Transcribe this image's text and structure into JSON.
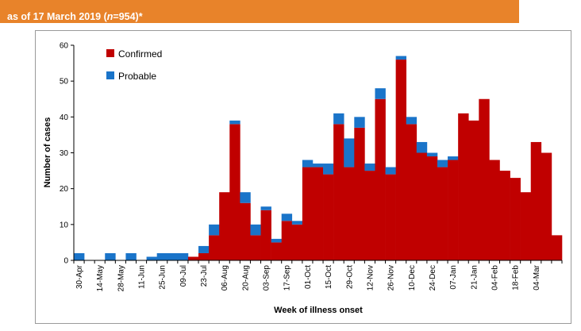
{
  "figure": {
    "caption_line": "as of 17 March 2019 (",
    "caption_n_label": "n",
    "caption_n_value": "=954)*"
  },
  "chart_data": {
    "type": "bar",
    "stacked": true,
    "xlabel": "Week of illness onset",
    "ylabel": "Number of cases",
    "ylim": [
      0,
      60
    ],
    "yticks": [
      0,
      10,
      20,
      30,
      40,
      50,
      60
    ],
    "legend_position": "top-left",
    "grid": false,
    "x_tick_labels": [
      "30-Apr",
      "14-May",
      "28-May",
      "11-Jun",
      "25-Jun",
      "09-Jul",
      "23-Jul",
      "06-Aug",
      "20-Aug",
      "03-Sep",
      "17-Sep",
      "01-Oct",
      "15-Oct",
      "29-Oct",
      "12-Nov",
      "26-Nov",
      "10-Dec",
      "24-Dec",
      "07-Jan",
      "21-Jan",
      "04-Feb",
      "18-Feb",
      "04-Mar"
    ],
    "series": [
      {
        "name": "Confirmed",
        "color": "#c00000",
        "values": [
          0,
          0,
          0,
          0,
          0,
          0,
          0,
          0,
          0,
          0,
          0,
          1,
          2,
          7,
          19,
          38,
          16,
          7,
          14,
          5,
          11,
          10,
          26,
          26,
          24,
          38,
          26,
          37,
          25,
          45,
          24,
          56,
          38,
          30,
          29,
          26,
          28,
          41,
          39,
          45,
          28,
          25,
          23,
          19,
          33,
          30,
          7
        ]
      },
      {
        "name": "Probable",
        "color": "#1a74c9",
        "values": [
          2,
          0,
          0,
          2,
          0,
          2,
          0,
          1,
          2,
          2,
          2,
          0,
          2,
          3,
          0,
          1,
          3,
          3,
          1,
          1,
          2,
          1,
          2,
          1,
          3,
          3,
          8,
          3,
          2,
          3,
          2,
          1,
          2,
          3,
          1,
          2,
          1,
          0,
          0,
          0,
          0,
          0,
          0,
          0,
          0,
          0,
          0
        ]
      }
    ]
  }
}
